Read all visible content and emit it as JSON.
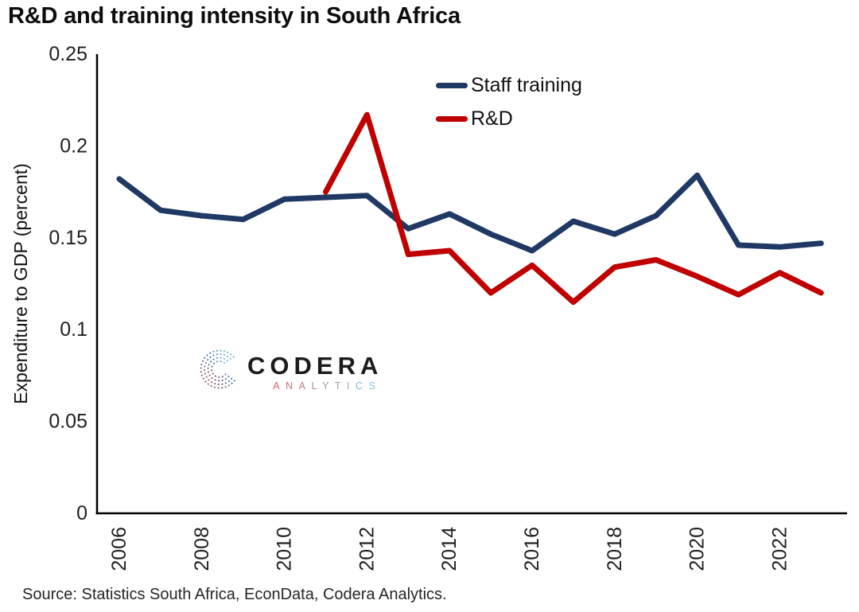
{
  "page": {
    "title": "R&D and training intensity in South Africa",
    "source": "Source: Statistics South Africa, EconData, Codera Analytics."
  },
  "logo": {
    "brand": "CODERA",
    "sub": "ANALYTICS"
  },
  "legend": {
    "entries": [
      "Staff training",
      "R&D"
    ]
  },
  "chart_data": {
    "type": "line",
    "title": "R&D and training intensity in South Africa",
    "xlabel": "",
    "ylabel": "Expenditure to GDP (percent)",
    "ylim": [
      0,
      0.25
    ],
    "xlim": [
      2006,
      2023
    ],
    "grid": false,
    "legend_position": "top-center-inside",
    "yticks": [
      0,
      0.05,
      0.1,
      0.15,
      0.2,
      0.25
    ],
    "ytick_labels": [
      "0",
      "0.05",
      "0.1",
      "0.15",
      "0.2",
      "0.25"
    ],
    "xticks": [
      2006,
      2008,
      2010,
      2012,
      2014,
      2016,
      2018,
      2020,
      2022
    ],
    "colors": {
      "staff_training": "#1f3864",
      "rnd": "#c00000"
    },
    "series": [
      {
        "name": "Staff training",
        "color": "#1f3864",
        "x": [
          2006,
          2007,
          2008,
          2009,
          2010,
          2011,
          2012,
          2013,
          2014,
          2015,
          2016,
          2017,
          2018,
          2019,
          2020,
          2021,
          2022,
          2023
        ],
        "values": [
          0.182,
          0.165,
          0.162,
          0.16,
          0.171,
          0.172,
          0.173,
          0.155,
          0.163,
          0.152,
          0.143,
          0.159,
          0.152,
          0.162,
          0.184,
          0.146,
          0.145,
          0.147
        ]
      },
      {
        "name": "R&D",
        "color": "#c00000",
        "x": [
          2011,
          2012,
          2013,
          2014,
          2015,
          2016,
          2017,
          2018,
          2019,
          2020,
          2021,
          2022,
          2023
        ],
        "values": [
          0.175,
          0.217,
          0.141,
          0.143,
          0.12,
          0.135,
          0.115,
          0.134,
          0.138,
          0.129,
          0.119,
          0.131,
          0.12
        ]
      }
    ]
  }
}
